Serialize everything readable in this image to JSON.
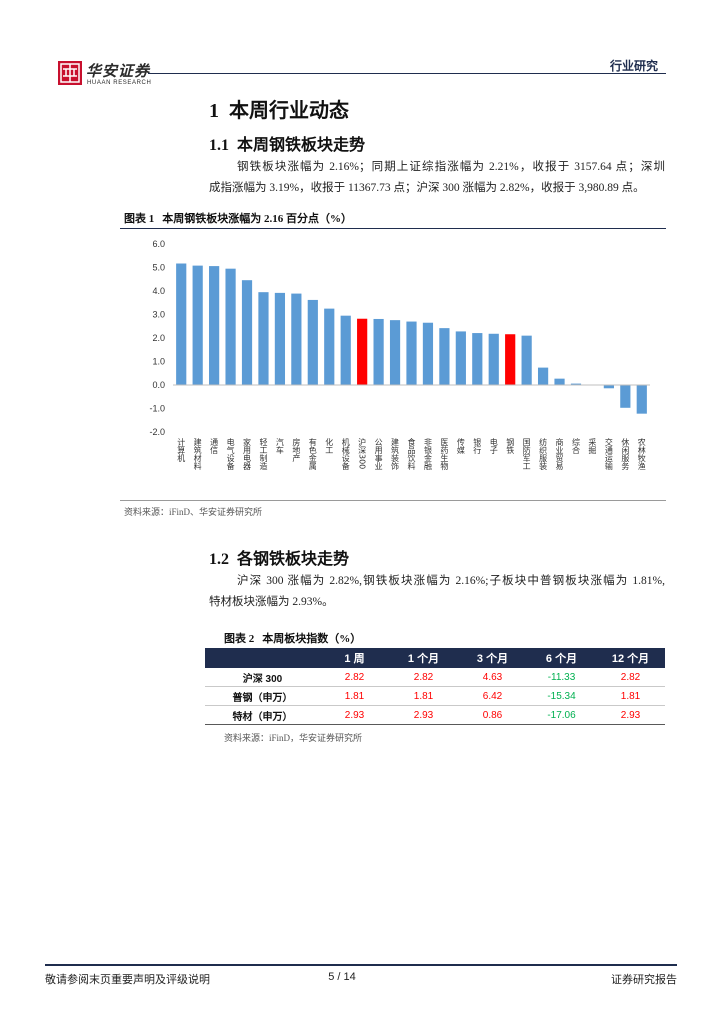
{
  "theme": {
    "navy": "#1F2D4E",
    "brand_red": "#C8102E"
  },
  "header": {
    "logo_text": "华安证券",
    "logo_subtext": "HUAAN RESEARCH",
    "section_label": "行业研究"
  },
  "section1": {
    "number": "1",
    "title": "本周行业动态"
  },
  "subsection1": {
    "number": "1.1",
    "title": "本周钢铁板块走势",
    "paragraph_lines": [
      "钢铁板块涨幅为 2.16%；同期上证综指涨幅为 2.21%，收报于 3157.64 点；深圳",
      "成指涨幅为 3.19%，收报于 11367.73 点；沪深 300 涨幅为 2.82%，收报于 3,980.89 点。"
    ]
  },
  "figure1": {
    "label": "图表 1",
    "title": "本周钢铁板块涨幅为 2.16 百分点（%）",
    "source": "资料来源：iFinD、华安证券研究所"
  },
  "subsection2": {
    "number": "1.2",
    "title": "各钢铁板块走势",
    "paragraph_lines": [
      "沪深 300 涨幅为 2.82%,钢铁板块涨幅为 2.16%;子板块中普钢板块涨幅为 1.81%,",
      "特材板块涨幅为 2.93%。"
    ]
  },
  "figure2": {
    "label": "图表 2",
    "title": "本周板块指数（%）",
    "source": "资料来源：iFinD，华安证券研究所"
  },
  "table": {
    "columns": [
      "1 周",
      "1 个月",
      "3 个月",
      "6 个月",
      "12 个月"
    ],
    "rows": [
      {
        "label": "沪深 300",
        "values": [
          "2.82",
          "2.82",
          "4.63",
          "-11.33",
          "2.82"
        ]
      },
      {
        "label": "普钢（申万）",
        "values": [
          "1.81",
          "1.81",
          "6.42",
          "-15.34",
          "1.81"
        ]
      },
      {
        "label": "特材（申万）",
        "values": [
          "2.93",
          "2.93",
          "0.86",
          "-17.06",
          "2.93"
        ]
      }
    ],
    "header_bg": "#1F2D4E",
    "positive_color": "#FF0000",
    "negative_color": "#00B050"
  },
  "footer": {
    "disclaimer": "敬请参阅末页重要声明及评级说明",
    "page_indicator": "5 / 14",
    "report_type": "证券研究报告"
  },
  "chart_data": {
    "type": "bar",
    "categories": [
      "计算机",
      "建筑材料",
      "通信",
      "电气设备",
      "家用电器",
      "轻工制造",
      "汽车",
      "房地产",
      "有色金属",
      "化工",
      "机械设备",
      "沪深300",
      "公用事业",
      "建筑装饰",
      "食品饮料",
      "非银金融",
      "医药生物",
      "传媒",
      "银行",
      "电子",
      "钢铁",
      "国防军工",
      "纺织服装",
      "商业贸易",
      "综合",
      "采掘",
      "交通运输",
      "休闲服务",
      "农林牧渔"
    ],
    "values": [
      5.17,
      5.08,
      5.06,
      4.95,
      4.46,
      3.95,
      3.92,
      3.89,
      3.62,
      3.25,
      2.95,
      2.82,
      2.81,
      2.76,
      2.7,
      2.65,
      2.42,
      2.28,
      2.21,
      2.18,
      2.16,
      2.1,
      0.74,
      0.27,
      0.06,
      -0.02,
      -0.14,
      -0.97,
      -1.22
    ],
    "bar_colors": [
      "#5B9BD5",
      "#5B9BD5",
      "#5B9BD5",
      "#5B9BD5",
      "#5B9BD5",
      "#5B9BD5",
      "#5B9BD5",
      "#5B9BD5",
      "#5B9BD5",
      "#5B9BD5",
      "#5B9BD5",
      "#FF0000",
      "#5B9BD5",
      "#5B9BD5",
      "#5B9BD5",
      "#5B9BD5",
      "#5B9BD5",
      "#5B9BD5",
      "#5B9BD5",
      "#5B9BD5",
      "#FF0000",
      "#5B9BD5",
      "#5B9BD5",
      "#5B9BD5",
      "#5B9BD5",
      "#5B9BD5",
      "#5B9BD5",
      "#5B9BD5",
      "#5B9BD5"
    ],
    "ylim": [
      -2,
      6
    ],
    "yticks": [
      6,
      5,
      4,
      3,
      2,
      1,
      0,
      -1,
      -2
    ],
    "ytick_labels": [
      "6.0",
      "5.0",
      "4.0",
      "3.0",
      "2.0",
      "1.0",
      "0.0",
      "-1.0",
      "-2.0"
    ],
    "grid": false,
    "legend": false
  }
}
